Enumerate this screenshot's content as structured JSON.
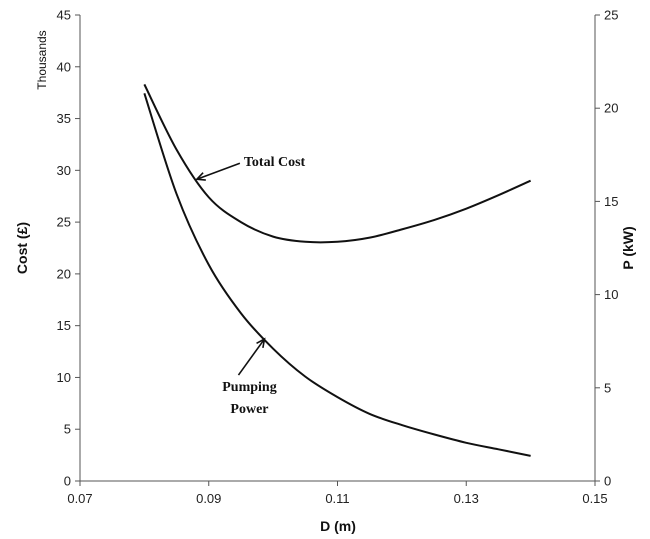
{
  "chart_data": {
    "type": "line",
    "xlabel": "D (m)",
    "ylabel": "Cost (£)",
    "ylabel_units": "Thousands",
    "y2label": "P (kW)",
    "xlim": [
      0.07,
      0.15
    ],
    "ylim": [
      0,
      45
    ],
    "y2lim": [
      0,
      25
    ],
    "xticks": [
      "0.07",
      "0.09",
      "0.11",
      "0.13",
      "0.15"
    ],
    "yticks": [
      "0",
      "5",
      "10",
      "15",
      "20",
      "25",
      "30",
      "35",
      "40",
      "45"
    ],
    "y2ticks": [
      "0",
      "5",
      "10",
      "15",
      "20",
      "25"
    ],
    "series": [
      {
        "name": "Total Cost",
        "axis": "left",
        "x": [
          0.08,
          0.085,
          0.09,
          0.095,
          0.1,
          0.105,
          0.11,
          0.115,
          0.12,
          0.125,
          0.13,
          0.135,
          0.14
        ],
        "y": [
          38.3,
          32.0,
          27.4,
          25.0,
          23.6,
          23.1,
          23.1,
          23.5,
          24.3,
          25.2,
          26.3,
          27.6,
          29.0
        ]
      },
      {
        "name": "Pumping Power",
        "axis": "right",
        "x": [
          0.08,
          0.085,
          0.09,
          0.095,
          0.1,
          0.105,
          0.11,
          0.115,
          0.12,
          0.125,
          0.13,
          0.135,
          0.14
        ],
        "y": [
          20.8,
          15.4,
          11.6,
          9.0,
          7.1,
          5.6,
          4.5,
          3.6,
          3.0,
          2.5,
          2.05,
          1.7,
          1.35
        ]
      }
    ],
    "annotations": [
      {
        "text": "Total Cost",
        "target_series": 0,
        "target_x": 0.088
      },
      {
        "text_lines": [
          "Pumping",
          "Power"
        ],
        "target_series": 1,
        "target_x": 0.0985
      }
    ]
  }
}
